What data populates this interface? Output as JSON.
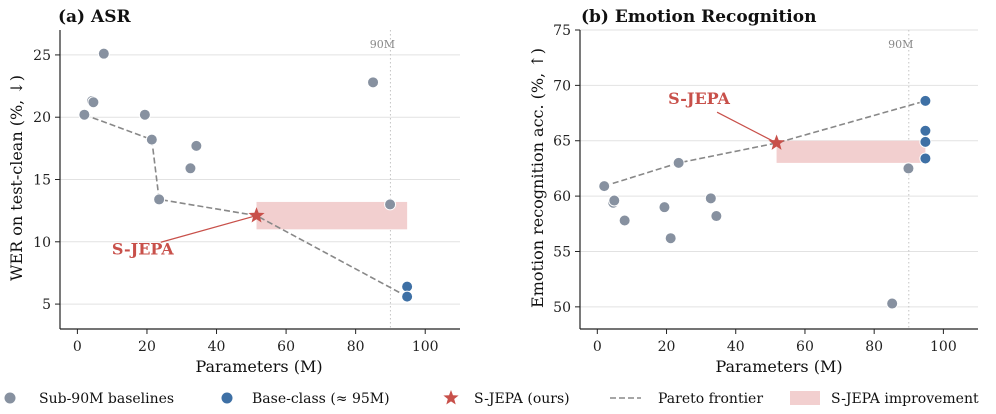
{
  "colors": {
    "baseline": "#8791a0",
    "base_class": "#3e70a5",
    "sjepa": "#c8504a",
    "pareto": "#888888",
    "improvement": "#f2cfcf"
  },
  "legend": {
    "sub90": "Sub-90M baselines",
    "base_class": "Base-class (≈ 95M)",
    "sjepa": "S-JEPA (ours)",
    "pareto": "Pareto frontier",
    "improvement": "S-JEPA improvement"
  },
  "chart_data": [
    {
      "type": "scatter",
      "title": "(a) ASR",
      "xlabel": "Parameters (M)",
      "ylabel": "WER on test-clean (%, ↓)",
      "xlim": [
        -5,
        110
      ],
      "ylim": [
        3,
        27
      ],
      "xticks": [
        "0",
        "20",
        "40",
        "60",
        "80",
        "100"
      ],
      "yticks": [
        "5",
        "10",
        "15",
        "20",
        "25"
      ],
      "grid": "horizontal",
      "vline": {
        "x": 90,
        "label": "90M"
      },
      "series": [
        {
          "points": [
            {
              "x": 2,
              "y": 20.2
            },
            {
              "x": 4.2,
              "y": 21.3
            },
            {
              "x": 4.6,
              "y": 21.2
            },
            {
              "x": 7.6,
              "y": 25.1
            },
            {
              "x": 19.4,
              "y": 20.2
            },
            {
              "x": 21.4,
              "y": 18.2
            },
            {
              "x": 23.5,
              "y": 13.4
            },
            {
              "x": 32.5,
              "y": 15.9
            },
            {
              "x": 34.2,
              "y": 17.7
            },
            {
              "x": 85,
              "y": 22.8
            },
            {
              "x": 89.9,
              "y": 13.0
            }
          ]
        },
        {
          "points": [
            {
              "x": 94.8,
              "y": 6.4
            },
            {
              "x": 94.8,
              "y": 5.6
            }
          ]
        },
        {
          "points": [
            {
              "x": 51.5,
              "y": 12.1
            }
          ]
        }
      ],
      "pareto": [
        {
          "x": 2,
          "y": 20.2
        },
        {
          "x": 21.4,
          "y": 18.2
        },
        {
          "x": 23.5,
          "y": 13.4
        },
        {
          "x": 51.5,
          "y": 12.1
        },
        {
          "x": 94.8,
          "y": 5.6
        }
      ],
      "improvement": {
        "x0": 51.5,
        "x1": 94.8,
        "y0": 11.0,
        "y1": 13.2
      },
      "annotation": {
        "text": "S-JEPA",
        "x": 18.8,
        "y": 9.0,
        "target_x": 51.5,
        "target_y": 12.1
      }
    },
    {
      "type": "scatter",
      "title": "(b) Emotion Recognition",
      "xlabel": "Parameters (M)",
      "ylabel": "Emotion recognition acc. (%, ↑)",
      "xlim": [
        -5,
        110
      ],
      "ylim": [
        48,
        75
      ],
      "xticks": [
        "0",
        "20",
        "40",
        "60",
        "80",
        "100"
      ],
      "yticks": [
        "50",
        "55",
        "60",
        "65",
        "70",
        "75"
      ],
      "grid": "horizontal",
      "vline": {
        "x": 90,
        "label": "90M"
      },
      "series": [
        {
          "points": [
            {
              "x": 2,
              "y": 60.9
            },
            {
              "x": 4.6,
              "y": 59.4
            },
            {
              "x": 4.9,
              "y": 59.6
            },
            {
              "x": 7.9,
              "y": 57.8
            },
            {
              "x": 19.4,
              "y": 59.0
            },
            {
              "x": 21.2,
              "y": 56.2
            },
            {
              "x": 23.5,
              "y": 63.0
            },
            {
              "x": 32.8,
              "y": 59.8
            },
            {
              "x": 34.4,
              "y": 58.2
            },
            {
              "x": 85.2,
              "y": 50.3
            },
            {
              "x": 89.9,
              "y": 62.5
            }
          ]
        },
        {
          "points": [
            {
              "x": 94.8,
              "y": 68.6
            },
            {
              "x": 94.8,
              "y": 65.9
            },
            {
              "x": 94.8,
              "y": 64.9
            },
            {
              "x": 94.8,
              "y": 63.4
            }
          ]
        },
        {
          "points": [
            {
              "x": 51.8,
              "y": 64.8
            }
          ]
        }
      ],
      "pareto": [
        {
          "x": 2,
          "y": 60.9
        },
        {
          "x": 23.5,
          "y": 63.0
        },
        {
          "x": 51.8,
          "y": 64.8
        },
        {
          "x": 94.8,
          "y": 68.6
        }
      ],
      "improvement": {
        "x0": 51.8,
        "x1": 94.8,
        "y0": 63.0,
        "y1": 65.0
      },
      "annotation": {
        "text": "S-JEPA",
        "x": 29.4,
        "y": 68.3,
        "target_x": 51.8,
        "target_y": 64.8
      }
    }
  ]
}
